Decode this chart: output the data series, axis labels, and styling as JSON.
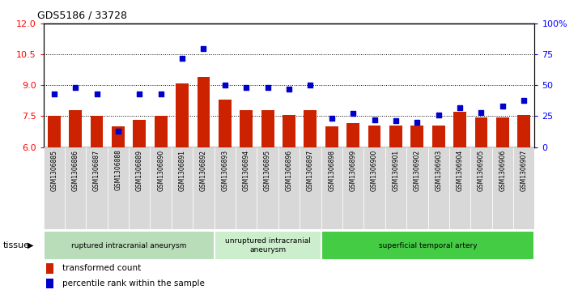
{
  "title": "GDS5186 / 33728",
  "samples": [
    "GSM1306885",
    "GSM1306886",
    "GSM1306887",
    "GSM1306888",
    "GSM1306889",
    "GSM1306890",
    "GSM1306891",
    "GSM1306892",
    "GSM1306893",
    "GSM1306894",
    "GSM1306895",
    "GSM1306896",
    "GSM1306897",
    "GSM1306898",
    "GSM1306899",
    "GSM1306900",
    "GSM1306901",
    "GSM1306902",
    "GSM1306903",
    "GSM1306904",
    "GSM1306905",
    "GSM1306906",
    "GSM1306907"
  ],
  "bar_values": [
    7.5,
    7.8,
    7.5,
    7.0,
    7.3,
    7.5,
    9.1,
    9.4,
    8.3,
    7.8,
    7.8,
    7.55,
    7.8,
    7.0,
    7.15,
    7.05,
    7.05,
    7.05,
    7.05,
    7.7,
    7.45,
    7.45,
    7.55
  ],
  "dot_percentiles": [
    43,
    48,
    43,
    13,
    43,
    43,
    72,
    80,
    50,
    48,
    48,
    47,
    50,
    23,
    27,
    22,
    21,
    20,
    26,
    32,
    28,
    33,
    38
  ],
  "ylim_left": [
    6,
    12
  ],
  "ylim_right": [
    0,
    100
  ],
  "yticks_left": [
    6,
    7.5,
    9,
    10.5,
    12
  ],
  "yticks_right": [
    0,
    25,
    50,
    75,
    100
  ],
  "gridlines": [
    7.5,
    9.0,
    10.5
  ],
  "bar_color": "#cc2200",
  "dot_color": "#0000cc",
  "tissue_groups": [
    {
      "label": "ruptured intracranial aneurysm",
      "start": 0,
      "end": 8,
      "color": "#b8ddb8"
    },
    {
      "label": "unruptured intracranial\naneurysm",
      "start": 8,
      "end": 13,
      "color": "#cceecc"
    },
    {
      "label": "superficial temporal artery",
      "start": 13,
      "end": 23,
      "color": "#44cc44"
    }
  ],
  "legend_bar_label": "transformed count",
  "legend_dot_label": "percentile rank within the sample",
  "tissue_label": "tissue",
  "label_bg_color": "#d8d8d8",
  "plot_bg_color": "#ffffff"
}
